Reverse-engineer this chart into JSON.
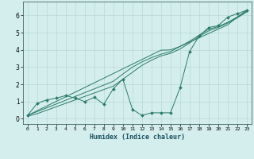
{
  "xlabel": "Humidex (Indice chaleur)",
  "bg_color": "#d4eeee",
  "grid_color": "#b8d8d8",
  "line_color": "#2a7a6a",
  "x_data": [
    0,
    1,
    2,
    3,
    4,
    5,
    6,
    7,
    8,
    9,
    10,
    11,
    12,
    13,
    14,
    15,
    16,
    17,
    18,
    19,
    20,
    21,
    22,
    23
  ],
  "y_main": [
    0.2,
    0.9,
    1.1,
    1.2,
    1.35,
    1.2,
    1.0,
    1.25,
    0.85,
    1.75,
    2.3,
    0.55,
    0.2,
    0.35,
    0.35,
    0.35,
    1.8,
    3.9,
    4.8,
    5.3,
    5.4,
    5.9,
    6.1,
    6.3
  ],
  "y_line1": [
    0.2,
    0.47,
    0.74,
    1.01,
    1.28,
    1.55,
    1.82,
    2.09,
    2.36,
    2.63,
    2.9,
    3.17,
    3.44,
    3.71,
    3.98,
    4.0,
    4.2,
    4.45,
    4.7,
    4.95,
    5.2,
    5.45,
    5.9,
    6.3
  ],
  "y_line2": [
    0.2,
    0.42,
    0.64,
    0.86,
    1.08,
    1.3,
    1.52,
    1.74,
    1.96,
    2.18,
    2.6,
    3.0,
    3.3,
    3.55,
    3.75,
    3.9,
    4.2,
    4.5,
    4.85,
    5.2,
    5.35,
    5.6,
    5.9,
    6.25
  ],
  "y_line3": [
    0.15,
    0.3,
    0.5,
    0.7,
    0.9,
    1.1,
    1.3,
    1.5,
    1.7,
    1.9,
    2.3,
    2.7,
    3.1,
    3.4,
    3.65,
    3.8,
    4.05,
    4.4,
    4.78,
    5.1,
    5.3,
    5.55,
    5.85,
    6.2
  ],
  "xlim": [
    -0.5,
    23.5
  ],
  "ylim": [
    -0.3,
    6.8
  ],
  "yticks": [
    0,
    1,
    2,
    3,
    4,
    5,
    6
  ],
  "xticks": [
    0,
    1,
    2,
    3,
    4,
    5,
    6,
    7,
    8,
    9,
    10,
    11,
    12,
    13,
    14,
    15,
    16,
    17,
    18,
    19,
    20,
    21,
    22,
    23
  ]
}
